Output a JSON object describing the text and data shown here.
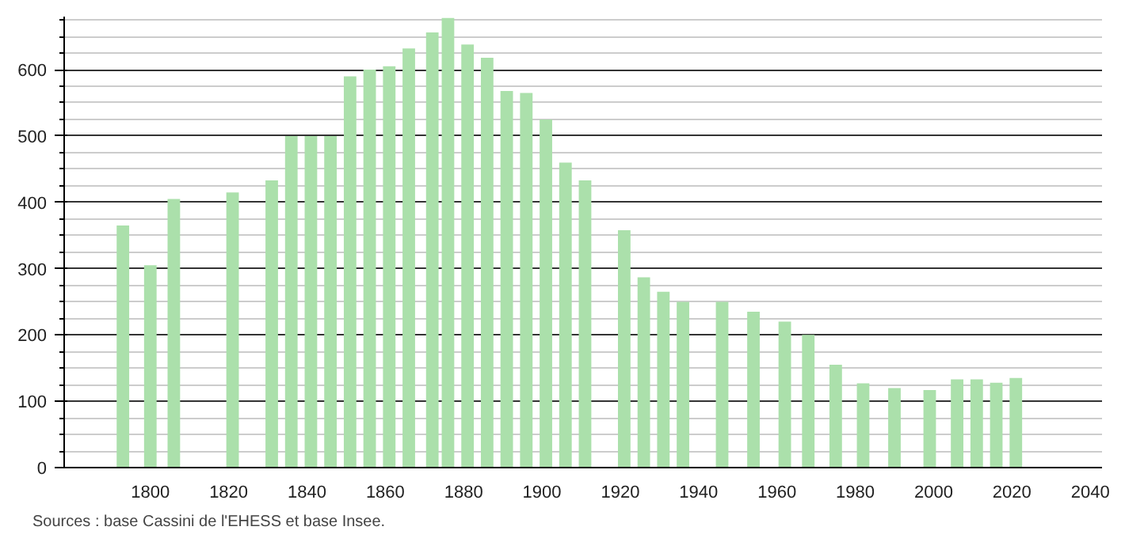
{
  "chart_data": {
    "type": "bar",
    "color": "#abe0ab",
    "x": [
      1793,
      1800,
      1806,
      1821,
      1831,
      1836,
      1841,
      1846,
      1851,
      1856,
      1861,
      1866,
      1872,
      1876,
      1881,
      1886,
      1891,
      1896,
      1901,
      1906,
      1911,
      1921,
      1926,
      1931,
      1936,
      1946,
      1954,
      1962,
      1968,
      1975,
      1982,
      1990,
      1999,
      2006,
      2011,
      2016,
      2021
    ],
    "values": [
      365,
      305,
      405,
      415,
      433,
      500,
      500,
      500,
      590,
      600,
      605,
      632,
      656,
      678,
      638,
      618,
      568,
      565,
      525,
      460,
      433,
      358,
      287,
      265,
      250,
      250,
      235,
      220,
      200,
      155,
      127,
      120,
      117,
      133,
      133,
      128,
      135
    ],
    "xlim": [
      1778,
      2043
    ],
    "xticks": [
      1800,
      1820,
      1840,
      1860,
      1880,
      1900,
      1920,
      1940,
      1960,
      1980,
      2000,
      2020,
      2040
    ],
    "ylim": [
      0,
      680
    ],
    "yticks": [
      0,
      100,
      200,
      300,
      400,
      500,
      600
    ],
    "grid": "y",
    "annotations": [
      "Sources : base Cassini de l'EHESS et base Insee."
    ]
  }
}
